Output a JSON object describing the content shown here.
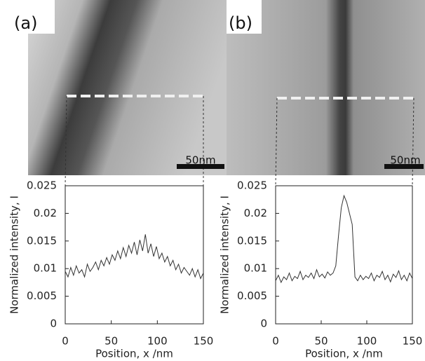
{
  "chart_data": [
    {
      "type": "line",
      "panel_label": "(a)",
      "scale_bar_label": "50nm",
      "xlabel": "Position, x /nm",
      "ylabel": "Normalized intensity, I",
      "color": "#333",
      "xlim": [
        0,
        150
      ],
      "ylim": [
        0,
        0.025
      ],
      "xticks": [
        0,
        50,
        100,
        150
      ],
      "yticks": [
        0,
        0.005,
        0.01,
        0.015,
        0.02,
        0.025
      ],
      "x": [
        0,
        3,
        6,
        9,
        12,
        15,
        18,
        21,
        24,
        27,
        30,
        33,
        36,
        39,
        42,
        45,
        48,
        51,
        54,
        57,
        60,
        63,
        66,
        69,
        72,
        75,
        78,
        81,
        84,
        87,
        90,
        93,
        96,
        99,
        102,
        105,
        108,
        111,
        114,
        117,
        120,
        123,
        126,
        129,
        132,
        135,
        138,
        141,
        144,
        147,
        150
      ],
      "values": [
        0.0095,
        0.0085,
        0.0102,
        0.0088,
        0.0105,
        0.0092,
        0.0098,
        0.0085,
        0.0108,
        0.0095,
        0.0102,
        0.0112,
        0.0098,
        0.0115,
        0.0105,
        0.012,
        0.0108,
        0.0125,
        0.0115,
        0.0132,
        0.0118,
        0.0138,
        0.0122,
        0.0142,
        0.0128,
        0.0148,
        0.0125,
        0.0152,
        0.0132,
        0.0162,
        0.0128,
        0.0145,
        0.0122,
        0.014,
        0.0118,
        0.0128,
        0.0112,
        0.0122,
        0.0105,
        0.0115,
        0.0098,
        0.0108,
        0.0092,
        0.0102,
        0.0095,
        0.0088,
        0.01,
        0.0085,
        0.0098,
        0.0082,
        0.0092
      ]
    },
    {
      "type": "line",
      "panel_label": "(b)",
      "scale_bar_label": "50nm",
      "xlabel": "Position, x /nm",
      "ylabel": "Normalized intensity, I",
      "color": "#333",
      "xlim": [
        0,
        150
      ],
      "ylim": [
        0,
        0.025
      ],
      "xticks": [
        0,
        50,
        100,
        150
      ],
      "yticks": [
        0,
        0.005,
        0.01,
        0.015,
        0.02,
        0.025
      ],
      "x": [
        0,
        3,
        6,
        9,
        12,
        15,
        18,
        21,
        24,
        27,
        30,
        33,
        36,
        39,
        42,
        45,
        48,
        51,
        54,
        57,
        60,
        63,
        66,
        69,
        72,
        75,
        78,
        81,
        84,
        87,
        90,
        93,
        96,
        99,
        102,
        105,
        108,
        111,
        114,
        117,
        120,
        123,
        126,
        129,
        132,
        135,
        138,
        141,
        144,
        147,
        150
      ],
      "values": [
        0.0078,
        0.0088,
        0.0075,
        0.0085,
        0.008,
        0.0092,
        0.0078,
        0.0086,
        0.0082,
        0.0095,
        0.008,
        0.0088,
        0.0084,
        0.0092,
        0.0082,
        0.0098,
        0.0085,
        0.009,
        0.0083,
        0.0094,
        0.0088,
        0.0092,
        0.0105,
        0.016,
        0.021,
        0.0232,
        0.022,
        0.02,
        0.018,
        0.0085,
        0.0078,
        0.0088,
        0.008,
        0.0086,
        0.0082,
        0.0092,
        0.0078,
        0.0088,
        0.0084,
        0.0095,
        0.008,
        0.0088,
        0.0076,
        0.009,
        0.0084,
        0.0096,
        0.008,
        0.0088,
        0.0078,
        0.0092,
        0.0082
      ]
    }
  ]
}
